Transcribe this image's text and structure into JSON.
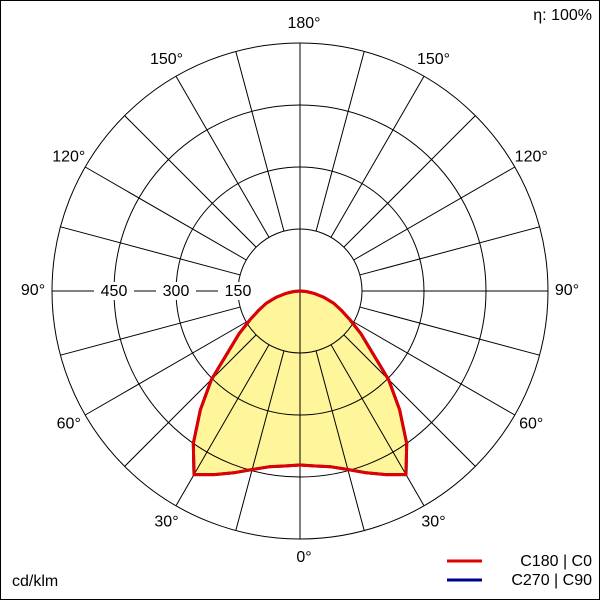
{
  "chart_data": {
    "type": "polar",
    "angles": [
      0,
      5,
      10,
      15,
      20,
      25,
      30,
      35,
      40,
      45,
      50,
      55,
      60,
      65,
      70,
      75,
      80,
      85,
      90
    ],
    "series": [
      {
        "name": "C180 | C0",
        "color": "#e00000",
        "values": [
          421,
          425,
          432,
          447,
          468,
          490,
          513,
          450,
          375,
          303,
          225,
          180,
          140,
          110,
          87,
          60,
          36,
          15,
          0
        ]
      },
      {
        "name": "C270 | C90",
        "color": "#00008c",
        "values": [
          421,
          425,
          432,
          447,
          468,
          490,
          513,
          450,
          375,
          303,
          225,
          180,
          140,
          110,
          87,
          60,
          36,
          15,
          0
        ]
      }
    ],
    "fill_color": "#fff59a",
    "rlim": [
      0,
      600
    ],
    "rticks": [
      150,
      300,
      450
    ],
    "angular_grid_step": 15,
    "angular_ticks": [
      {
        "value": 0,
        "label": "0°"
      },
      {
        "value": 30,
        "label": "30°"
      },
      {
        "value": 60,
        "label": "60°"
      },
      {
        "value": 90,
        "label": "90°"
      },
      {
        "value": 120,
        "label": "120°"
      },
      {
        "value": 150,
        "label": "150°"
      },
      {
        "value": 180,
        "label": "180°"
      }
    ],
    "unit_label": "cd/klm",
    "efficiency_label": "η: 100%"
  }
}
